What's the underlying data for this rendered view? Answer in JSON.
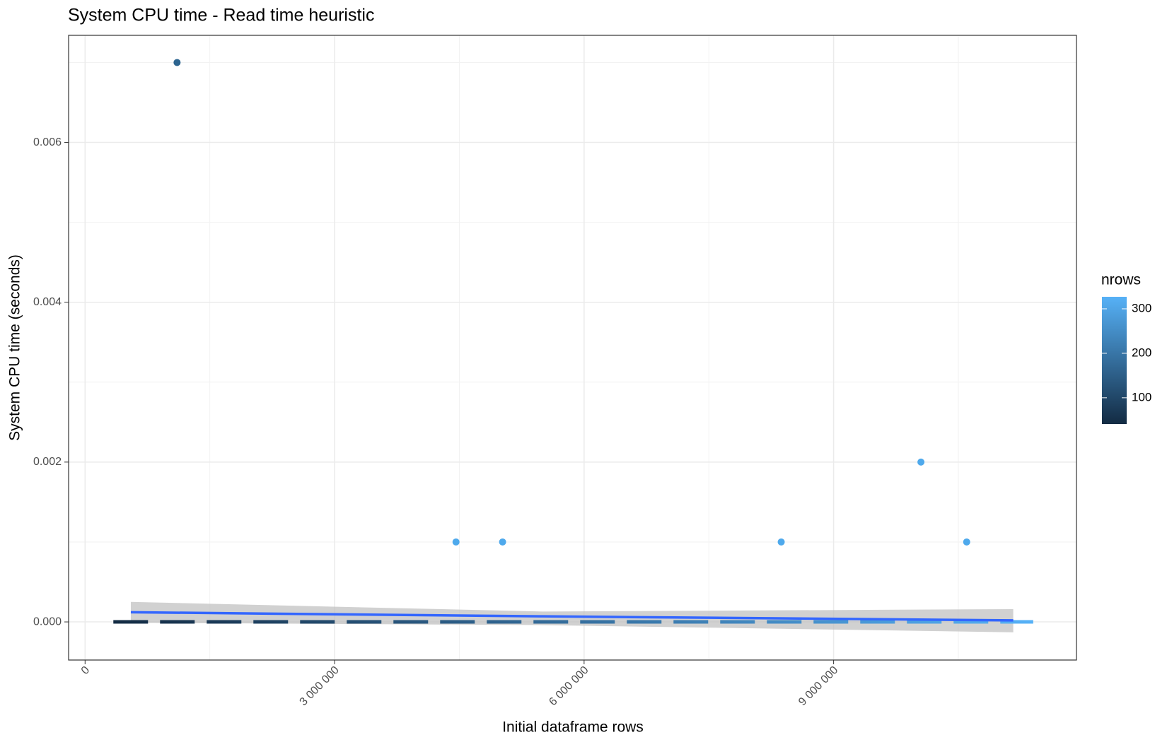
{
  "chart_data": {
    "type": "scatter",
    "title": "System CPU time - Read time heuristic",
    "x_label": "Initial dataframe rows",
    "y_label": "System CPU time (seconds)",
    "xlim": [
      -198000,
      11920000
    ],
    "ylim": [
      -0.000477,
      0.00734
    ],
    "xticks": [
      {
        "value": 0,
        "label": "0"
      },
      {
        "value": 3000000,
        "label": "3 000 000"
      },
      {
        "value": 6000000,
        "label": "6 000 000"
      },
      {
        "value": 9000000,
        "label": "9 000 000"
      }
    ],
    "yticks": [
      {
        "value": 0,
        "label": "0.000"
      },
      0.002,
      0.004,
      0.006
    ],
    "minor_xticks": [
      1500000,
      4500000,
      7500000,
      10500000
    ],
    "minor_yticks": [
      0.001,
      0.003,
      0.005,
      0.007
    ],
    "grid": true,
    "points": {
      "x": [
        1106000,
        4460000,
        5020000,
        8370000,
        10050000,
        10600000
      ],
      "y": [
        0.007,
        0.001,
        0.001,
        0.001,
        0.002,
        0.001
      ],
      "colors": [
        "#2d6590",
        "#4ea9ec",
        "#4ea9ec",
        "#4ea9ec",
        "#4ea9ec",
        "#4ea9ec"
      ]
    },
    "zero_line": {
      "x": [
        340000,
        11400000
      ],
      "y": [
        0,
        0
      ]
    },
    "smooth": {
      "color": "#3366ff",
      "x": [
        550000,
        5500000,
        11160000
      ],
      "y": [
        0.000121,
        7e-05,
        1.9e-05
      ]
    },
    "band": {
      "color": "#bdbdbd",
      "x": [
        550000,
        5500000,
        11160000
      ],
      "upper": [
        0.00025,
        0.00013,
        0.00016
      ],
      "lower": [
        -1e-05,
        -4e-05,
        -0.00013
      ]
    },
    "legend": {
      "title": "nrows",
      "lim": [
        41,
        327
      ],
      "ticks": [
        100,
        200,
        300
      ],
      "low": "#132b43",
      "high": "#56b1f7"
    }
  }
}
